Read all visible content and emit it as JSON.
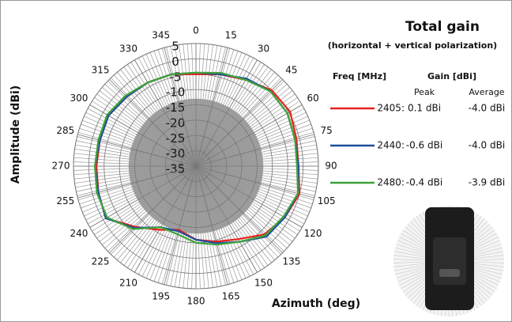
{
  "chart_data": {
    "type": "polar",
    "title": "Total gain",
    "subtitle": "(horizontal + vertical polarization)",
    "ylabel": "Amplitude (dBi)",
    "xlabel": "Azimuth (deg)",
    "theta": [
      0,
      15,
      30,
      45,
      60,
      75,
      90,
      105,
      120,
      135,
      150,
      165,
      180,
      195,
      210,
      225,
      240,
      255,
      270,
      285,
      300,
      315,
      330,
      345
    ],
    "rlim": [
      -35,
      5
    ],
    "rticks": [
      5,
      0,
      -5,
      -10,
      -15,
      -20,
      -25,
      -30,
      -35
    ],
    "grid": true,
    "legend_headers": {
      "freq": "Freq [MHz]",
      "gain": "Gain [dBi]",
      "peak": "Peak",
      "average": "Average"
    },
    "series": [
      {
        "name": "2405:",
        "color": "#e8211c",
        "peak": "0.1 dBi",
        "average": "-4.0 dBi",
        "values": [
          -5,
          -4,
          -2.5,
          0,
          0.5,
          -1,
          -1.5,
          0,
          -1.5,
          -3.5,
          -7.5,
          -9.5,
          -11,
          -13.5,
          -11,
          -7,
          -1,
          -2,
          -2.5,
          -2.5,
          -2,
          -3,
          -3.5,
          -4
        ]
      },
      {
        "name": "2440:",
        "color": "#1f4e9c",
        "peak": "-0.6 dBi",
        "average": "-4.0 dBi",
        "values": [
          -4.5,
          -4,
          -2,
          -0.5,
          -0.5,
          -1.5,
          -1.5,
          -0.5,
          -1.5,
          -2.5,
          -6.5,
          -9,
          -11,
          -13,
          -12,
          -6.5,
          -1,
          -2,
          -2,
          -2.5,
          -2,
          -3,
          -3.5,
          -4
        ]
      },
      {
        "name": "2480:",
        "color": "#3ea33a",
        "peak": "-0.4 dBi",
        "average": "-3.9 dBi",
        "values": [
          -4.5,
          -3.5,
          -2.5,
          -0.5,
          -0.5,
          -1.5,
          -2,
          -0.5,
          -2,
          -3,
          -6.5,
          -8.5,
          -10,
          -12,
          -12,
          -6,
          -1.5,
          -1.5,
          -2,
          -2,
          -1.5,
          -2.5,
          -3.5,
          -4
        ]
      }
    ]
  }
}
